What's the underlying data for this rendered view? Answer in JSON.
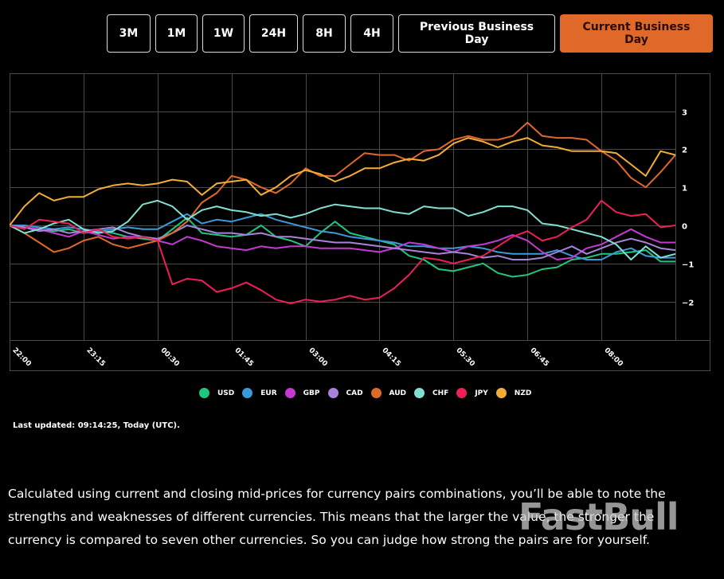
{
  "range_selector": {
    "buttons": [
      {
        "label": "3M",
        "active": false
      },
      {
        "label": "1M",
        "active": false
      },
      {
        "label": "1W",
        "active": false
      },
      {
        "label": "24H",
        "active": false
      },
      {
        "label": "8H",
        "active": false
      },
      {
        "label": "4H",
        "active": false
      },
      {
        "label": "Previous Business Day",
        "active": false
      },
      {
        "label": "Current Business Day",
        "active": true
      }
    ]
  },
  "colors": {
    "accent": "#e0692a",
    "background": "#000000",
    "grid": "#4a4a4a"
  },
  "chart_data": {
    "type": "line",
    "title": "",
    "xlabel": "",
    "ylabel": "",
    "ylim": [
      -2.9,
      4.0
    ],
    "yticks": [
      3,
      2,
      1,
      0,
      -1,
      -2
    ],
    "xtick_labels": [
      "22:00",
      "23:15",
      "00:30",
      "01:45",
      "03:00",
      "04:15",
      "05:30",
      "06:45",
      "08:00"
    ],
    "grid": true,
    "legend_position": "bottom",
    "x": [
      "22:00",
      "22:15",
      "22:30",
      "22:45",
      "23:00",
      "23:15",
      "23:30",
      "23:45",
      "00:00",
      "00:15",
      "00:30",
      "00:45",
      "01:00",
      "01:15",
      "01:30",
      "01:45",
      "02:00",
      "02:15",
      "02:30",
      "02:45",
      "03:00",
      "03:15",
      "03:30",
      "03:45",
      "04:00",
      "04:15",
      "04:30",
      "04:45",
      "05:00",
      "05:15",
      "05:30",
      "05:45",
      "06:00",
      "06:15",
      "06:30",
      "06:45",
      "07:00",
      "07:15",
      "07:30",
      "07:45",
      "08:00",
      "08:15",
      "08:30",
      "08:45",
      "09:00",
      "09:15"
    ],
    "series": [
      {
        "name": "USD",
        "color": "#1fc77e",
        "values": [
          0,
          -0.05,
          -0.1,
          -0.15,
          -0.1,
          -0.2,
          -0.15,
          -0.2,
          -0.3,
          -0.35,
          -0.4,
          -0.1,
          0.2,
          -0.2,
          -0.25,
          -0.3,
          -0.25,
          0,
          -0.3,
          -0.4,
          -0.55,
          -0.2,
          0.1,
          -0.2,
          -0.3,
          -0.4,
          -0.5,
          -0.8,
          -0.9,
          -1.15,
          -1.2,
          -1.1,
          -1.0,
          -1.25,
          -1.35,
          -1.3,
          -1.15,
          -1.1,
          -0.9,
          -0.85,
          -0.75,
          -0.75,
          -0.7,
          -0.65,
          -0.95,
          -0.95
        ]
      },
      {
        "name": "EUR",
        "color": "#3a9ad9",
        "values": [
          0,
          0,
          -0.05,
          -0.1,
          -0.05,
          -0.1,
          -0.15,
          -0.1,
          -0.05,
          -0.1,
          -0.1,
          0.1,
          0.3,
          0.05,
          0.15,
          0.1,
          0.2,
          0.3,
          0.15,
          0.05,
          -0.05,
          -0.15,
          -0.2,
          -0.3,
          -0.35,
          -0.4,
          -0.45,
          -0.55,
          -0.55,
          -0.6,
          -0.6,
          -0.55,
          -0.6,
          -0.7,
          -0.75,
          -0.75,
          -0.75,
          -0.65,
          -0.8,
          -0.9,
          -0.9,
          -0.7,
          -0.6,
          -0.8,
          -0.85,
          -0.85
        ]
      },
      {
        "name": "GBP",
        "color": "#c43ad1",
        "values": [
          0,
          -0.05,
          -0.1,
          -0.2,
          -0.3,
          -0.15,
          -0.25,
          -0.35,
          -0.3,
          -0.3,
          -0.4,
          -0.5,
          -0.3,
          -0.4,
          -0.55,
          -0.6,
          -0.65,
          -0.55,
          -0.6,
          -0.55,
          -0.55,
          -0.6,
          -0.6,
          -0.6,
          -0.65,
          -0.7,
          -0.6,
          -0.45,
          -0.5,
          -0.6,
          -0.7,
          -0.55,
          -0.5,
          -0.4,
          -0.25,
          -0.4,
          -0.7,
          -0.9,
          -0.85,
          -0.6,
          -0.5,
          -0.3,
          -0.1,
          -0.3,
          -0.45,
          -0.45
        ]
      },
      {
        "name": "CAD",
        "color": "#a783db",
        "values": [
          0,
          -0.05,
          -0.15,
          -0.1,
          -0.2,
          -0.15,
          -0.1,
          -0.05,
          -0.2,
          -0.3,
          -0.35,
          -0.2,
          0.0,
          -0.1,
          -0.2,
          -0.2,
          -0.25,
          -0.2,
          -0.3,
          -0.3,
          -0.35,
          -0.4,
          -0.45,
          -0.45,
          -0.5,
          -0.55,
          -0.6,
          -0.65,
          -0.7,
          -0.75,
          -0.7,
          -0.75,
          -0.85,
          -0.8,
          -0.9,
          -0.9,
          -0.85,
          -0.7,
          -0.55,
          -0.75,
          -0.6,
          -0.45,
          -0.35,
          -0.45,
          -0.6,
          -0.65
        ]
      },
      {
        "name": "AUD",
        "color": "#e0692a",
        "values": [
          0,
          -0.2,
          -0.45,
          -0.7,
          -0.6,
          -0.4,
          -0.3,
          -0.5,
          -0.6,
          -0.5,
          -0.4,
          -0.2,
          0.1,
          0.6,
          0.85,
          1.3,
          1.2,
          1.0,
          0.85,
          1.1,
          1.5,
          1.3,
          1.3,
          1.6,
          1.9,
          1.85,
          1.85,
          1.7,
          1.95,
          2.0,
          2.25,
          2.35,
          2.25,
          2.25,
          2.35,
          2.7,
          2.35,
          2.3,
          2.3,
          2.25,
          1.95,
          1.7,
          1.25,
          1.0,
          1.4,
          1.85
        ]
      },
      {
        "name": "CHF",
        "color": "#7fe0d0",
        "values": [
          0,
          -0.2,
          -0.1,
          0.05,
          0.15,
          -0.1,
          -0.2,
          -0.15,
          0.1,
          0.55,
          0.65,
          0.5,
          0.15,
          0.4,
          0.5,
          0.4,
          0.35,
          0.25,
          0.3,
          0.2,
          0.3,
          0.45,
          0.55,
          0.5,
          0.45,
          0.45,
          0.35,
          0.3,
          0.5,
          0.45,
          0.45,
          0.25,
          0.35,
          0.5,
          0.5,
          0.4,
          0.05,
          0.0,
          -0.1,
          -0.2,
          -0.3,
          -0.5,
          -0.9,
          -0.55,
          -0.85,
          -0.75
        ]
      },
      {
        "name": "JPY",
        "color": "#ee1f56",
        "values": [
          0,
          -0.1,
          0.15,
          0.1,
          0.05,
          -0.2,
          -0.1,
          -0.3,
          -0.35,
          -0.3,
          -0.4,
          -1.55,
          -1.4,
          -1.45,
          -1.75,
          -1.65,
          -1.5,
          -1.7,
          -1.95,
          -2.05,
          -1.95,
          -2.0,
          -1.95,
          -1.85,
          -1.95,
          -1.9,
          -1.65,
          -1.3,
          -0.85,
          -0.9,
          -1.0,
          -0.9,
          -0.8,
          -0.55,
          -0.3,
          -0.15,
          -0.4,
          -0.3,
          -0.05,
          0.15,
          0.65,
          0.35,
          0.25,
          0.3,
          -0.05,
          0.0
        ]
      },
      {
        "name": "NZD",
        "color": "#f3ad35",
        "values": [
          0,
          0.5,
          0.85,
          0.65,
          0.75,
          0.75,
          0.95,
          1.05,
          1.1,
          1.05,
          1.1,
          1.2,
          1.15,
          0.8,
          1.1,
          1.15,
          1.2,
          0.8,
          1.0,
          1.3,
          1.45,
          1.35,
          1.15,
          1.3,
          1.5,
          1.5,
          1.65,
          1.75,
          1.7,
          1.85,
          2.15,
          2.3,
          2.2,
          2.05,
          2.2,
          2.3,
          2.1,
          2.05,
          1.95,
          1.95,
          1.95,
          1.9,
          1.6,
          1.3,
          1.95,
          1.85
        ]
      }
    ]
  },
  "legend": {
    "items": [
      {
        "label": "USD",
        "color": "#1fc77e"
      },
      {
        "label": "EUR",
        "color": "#3a9ad9"
      },
      {
        "label": "GBP",
        "color": "#c43ad1"
      },
      {
        "label": "CAD",
        "color": "#a783db"
      },
      {
        "label": "AUD",
        "color": "#e0692a"
      },
      {
        "label": "CHF",
        "color": "#7fe0d0"
      },
      {
        "label": "JPY",
        "color": "#ee1f56"
      },
      {
        "label": "NZD",
        "color": "#f3ad35"
      }
    ]
  },
  "status": {
    "last_updated": "Last updated: 09:14:25, Today (UTC)."
  },
  "description": {
    "text": "Calculated using current and closing mid-prices for currency pairs combinations, you’ll be able to note the strengths and weaknesses of different currencies. This means that the larger the value, the stronger the currency is compared to seven other currencies. So you can judge how strong the pairs are for yourself."
  },
  "watermark": {
    "text": "FastBull"
  }
}
